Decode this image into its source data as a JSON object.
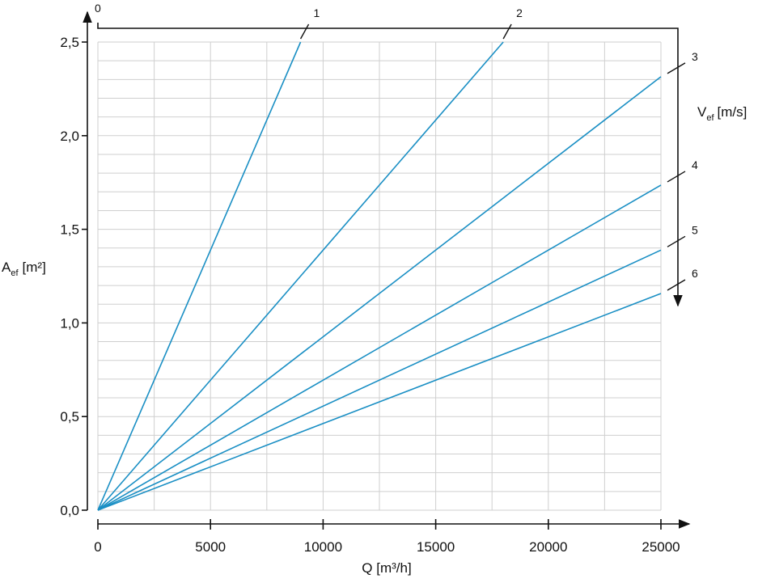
{
  "chart_data": {
    "type": "line",
    "x_label": "Q [m³/h]",
    "y_label": {
      "main": "A",
      "sub": "ef",
      "unit": "[m²]"
    },
    "y2_label": {
      "main": "V",
      "sub": "ef",
      "unit": "[m/s]"
    },
    "top_ticks": [
      0
    ],
    "xlim": [
      0,
      25000
    ],
    "ylim": [
      0,
      2.5
    ],
    "xticks": [
      0,
      5000,
      10000,
      15000,
      20000,
      25000
    ],
    "yticks": [
      {
        "value": 0,
        "label": "0,0"
      },
      {
        "value": 0.5,
        "label": "0,5"
      },
      {
        "value": 1.0,
        "label": "1,0"
      },
      {
        "value": 1.5,
        "label": "1,5"
      },
      {
        "value": 2.0,
        "label": "2,0"
      },
      {
        "value": 2.5,
        "label": "2,5"
      }
    ],
    "x_minor_ticks": [
      2500,
      7500,
      12500,
      17500,
      22500
    ],
    "y_minor_ticks": [
      0.1,
      0.2,
      0.3,
      0.4,
      0.6,
      0.7,
      0.8,
      0.9,
      1.1,
      1.2,
      1.3,
      1.4,
      1.6,
      1.7,
      1.8,
      1.9,
      2.1,
      2.2,
      2.3,
      2.4
    ],
    "grid": true,
    "series": [
      {
        "name": "1",
        "color": "#1a8fc4",
        "x": [
          0,
          9000
        ],
        "values": [
          0,
          2.5
        ]
      },
      {
        "name": "2",
        "color": "#1a8fc4",
        "x": [
          0,
          18000
        ],
        "values": [
          0,
          2.5
        ]
      },
      {
        "name": "3",
        "color": "#1a8fc4",
        "x": [
          0,
          25000
        ],
        "values": [
          0,
          2.315
        ]
      },
      {
        "name": "4",
        "color": "#1a8fc4",
        "x": [
          0,
          25000
        ],
        "values": [
          0,
          1.736
        ]
      },
      {
        "name": "5",
        "color": "#1a8fc4",
        "x": [
          0,
          25000
        ],
        "values": [
          0,
          1.389
        ]
      },
      {
        "name": "6",
        "color": "#1a8fc4",
        "x": [
          0,
          25000
        ],
        "values": [
          0,
          1.157
        ]
      }
    ]
  }
}
